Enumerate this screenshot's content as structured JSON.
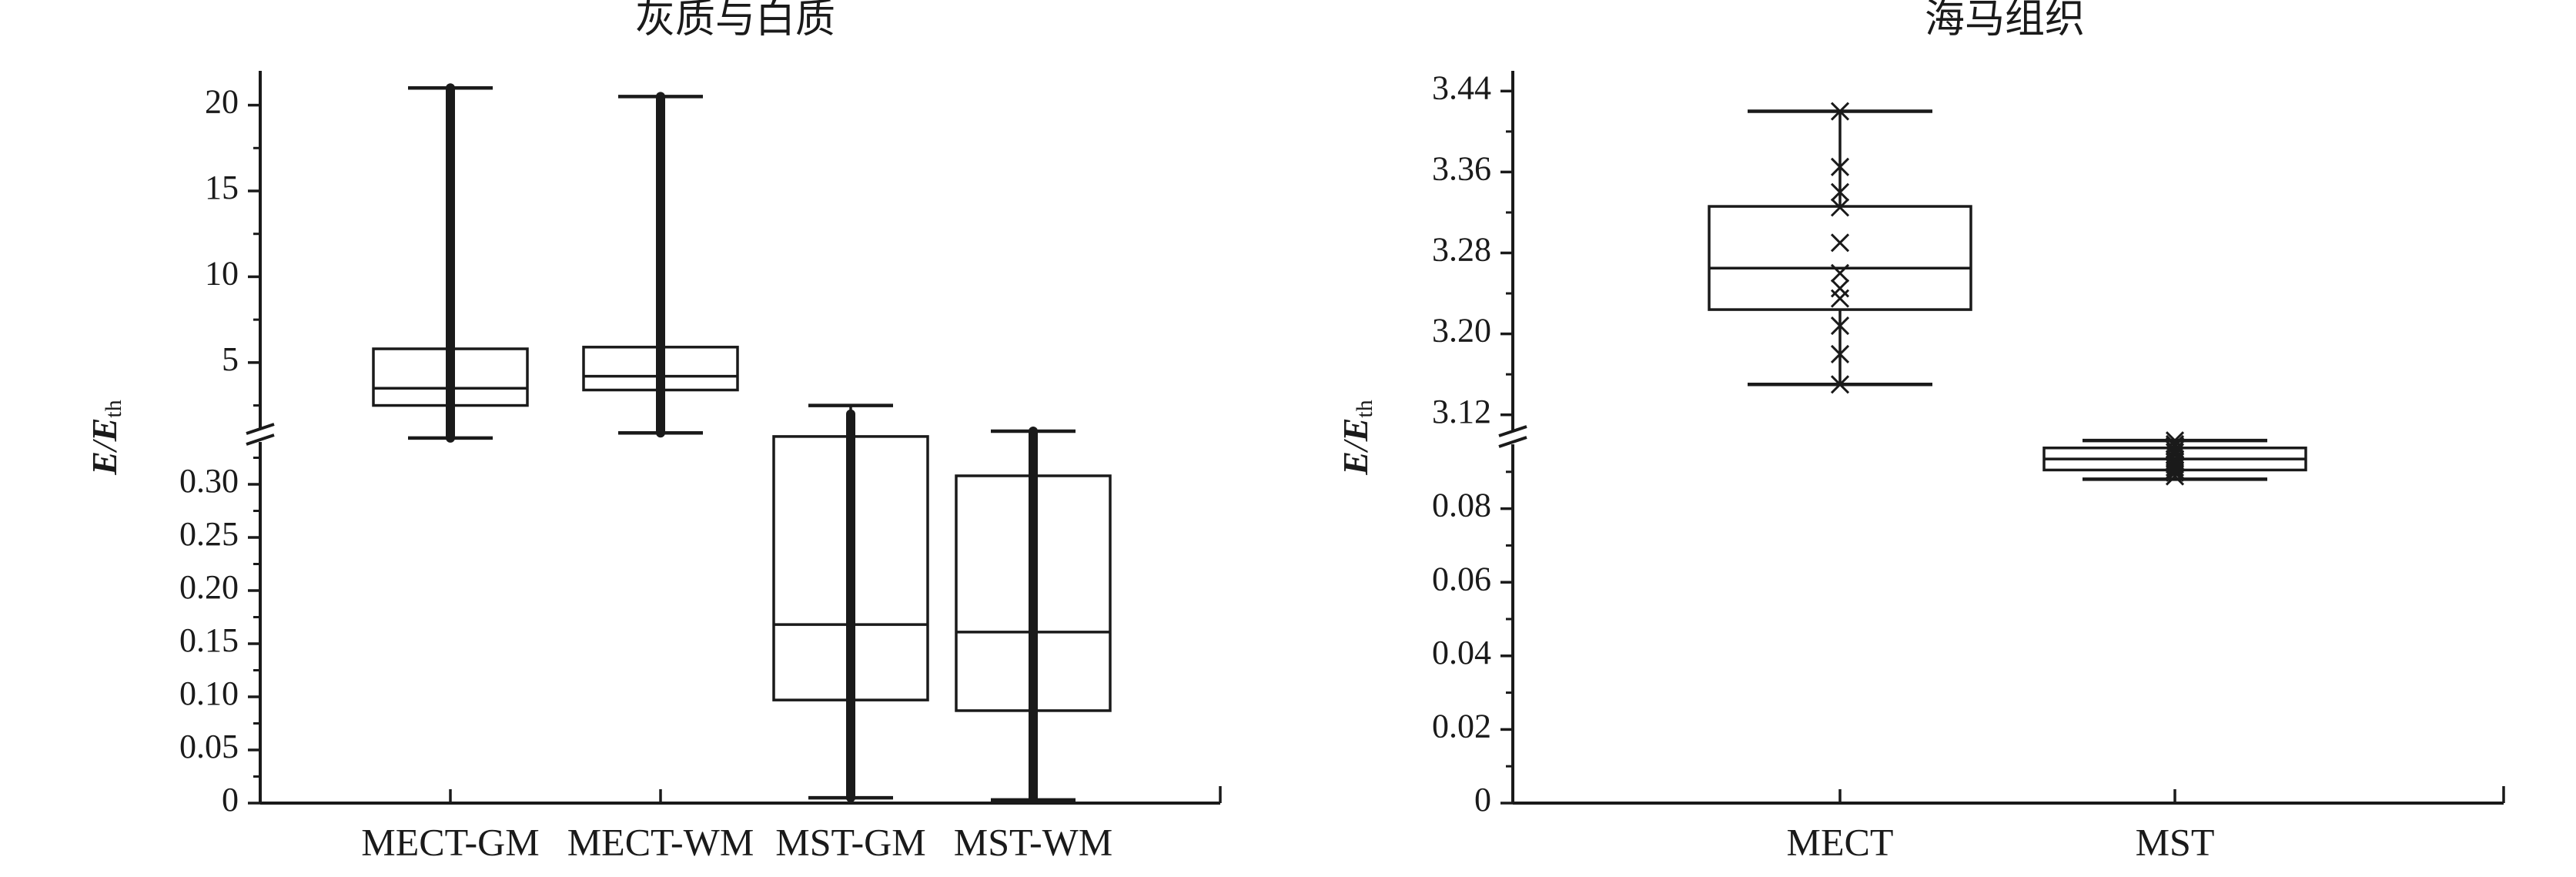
{
  "chart_data": [
    {
      "type": "box",
      "title": "灰质与白质",
      "ylabel_main": "E",
      "ylabel_sep": "/",
      "ylabel_sub_base": "E",
      "ylabel_sub": "th",
      "categories": [
        "MECT-GM",
        "MECT-WM",
        "MST-GM",
        "MST-WM"
      ],
      "broken_axis": true,
      "lower_segment": {
        "ylim": [
          0,
          0.35
        ],
        "ticks": [
          "0",
          "0.05",
          "0.10",
          "0.15",
          "0.20",
          "0.25",
          "0.30"
        ],
        "tick_values": [
          0,
          0.05,
          0.1,
          0.15,
          0.2,
          0.25,
          0.3
        ]
      },
      "upper_segment": {
        "ylim": [
          1,
          22
        ],
        "ticks": [
          "5",
          "10",
          "15",
          "20"
        ],
        "tick_values": [
          5,
          10,
          15,
          20
        ]
      },
      "boxes": [
        {
          "name": "MECT-GM",
          "whisker_low": 0.6,
          "q1": 2.5,
          "median": 3.5,
          "q3": 5.8,
          "whisker_high": 21.0,
          "dense_top": 21.0
        },
        {
          "name": "MECT-WM",
          "whisker_low": 0.9,
          "q1": 3.4,
          "median": 4.2,
          "q3": 5.9,
          "whisker_high": 20.5,
          "dense_top": 20.5
        },
        {
          "name": "MST-GM",
          "whisker_low": 0.005,
          "q1": 0.097,
          "median": 0.168,
          "q3": 0.345,
          "whisker_high": 2.5,
          "dense_top": 2.0
        },
        {
          "name": "MST-WM",
          "whisker_low": 0.003,
          "q1": 0.087,
          "median": 0.161,
          "q3": 0.308,
          "whisker_high": 1.0,
          "dense_top": 1.0
        }
      ]
    },
    {
      "type": "box",
      "title": "海马组织",
      "ylabel_main": "E",
      "ylabel_sep": "/",
      "ylabel_sub_base": "E",
      "ylabel_sub": "th",
      "categories": [
        "MECT",
        "MST"
      ],
      "broken_axis": true,
      "lower_segment": {
        "ylim": [
          0,
          0.1
        ],
        "ticks": [
          "0",
          "0.02",
          "0.04",
          "0.06",
          "0.08"
        ],
        "tick_values": [
          0,
          0.02,
          0.04,
          0.06,
          0.08
        ]
      },
      "upper_segment": {
        "ylim": [
          3.1,
          3.46
        ],
        "ticks": [
          "3.12",
          "3.20",
          "3.28",
          "3.36",
          "3.44"
        ],
        "tick_values": [
          3.12,
          3.2,
          3.28,
          3.36,
          3.44
        ]
      },
      "boxes": [
        {
          "name": "MECT",
          "whisker_low": 3.15,
          "q1": 3.224,
          "median": 3.265,
          "q3": 3.326,
          "whisker_high": 3.42,
          "points": [
            3.42,
            3.365,
            3.34,
            3.325,
            3.29,
            3.26,
            3.245,
            3.235,
            3.208,
            3.18,
            3.15
          ]
        },
        {
          "name": "MST",
          "whisker_low": 0.088,
          "q1": 0.0905,
          "median": 0.0935,
          "q3": 0.0965,
          "whisker_high": 0.0985,
          "points": [
            0.0985,
            0.0975,
            0.097,
            0.096,
            0.0953,
            0.0945,
            0.0935,
            0.0927,
            0.092,
            0.0912,
            0.0905,
            0.0898,
            0.0888
          ]
        }
      ]
    }
  ]
}
